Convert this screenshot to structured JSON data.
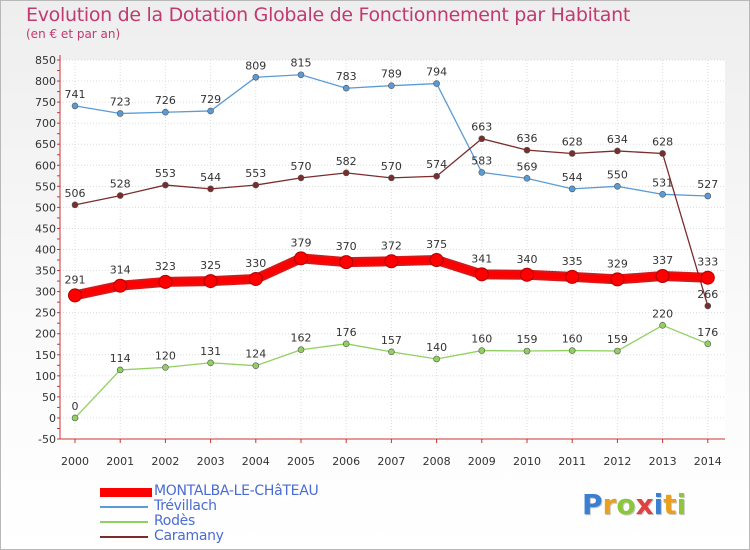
{
  "title": "Evolution de la Dotation Globale de Fonctionnement par Habitant",
  "subtitle": "(en € et par an)",
  "brand": {
    "letters": [
      "P",
      "r",
      "o",
      "x",
      "i",
      "t",
      "i"
    ],
    "colors": [
      "#3a7fd0",
      "#e8a020",
      "#8cc63e",
      "#e04040",
      "#3a7fd0",
      "#e8a020",
      "#8cc63e"
    ]
  },
  "chart_data": {
    "type": "line",
    "title": "Evolution de la Dotation Globale de Fonctionnement par Habitant",
    "ylabel": "(en € et par an)",
    "xlabel": "",
    "x": [
      "2000",
      "2001",
      "2002",
      "2003",
      "2004",
      "2005",
      "2006",
      "2007",
      "2008",
      "2009",
      "2010",
      "2011",
      "2012",
      "2013",
      "2014"
    ],
    "ylim": [
      -50,
      850
    ],
    "yticks": [
      "-50",
      "0",
      "50",
      "100",
      "150",
      "200",
      "250",
      "300",
      "350",
      "400",
      "450",
      "500",
      "550",
      "600",
      "650",
      "700",
      "750",
      "800",
      "850"
    ],
    "grid": true,
    "series": [
      {
        "name": "MONTALBA-LE-CHâTEAU",
        "color": "#ff0000",
        "emphasis": true,
        "values": [
          291,
          314,
          323,
          325,
          330,
          379,
          370,
          372,
          375,
          341,
          340,
          335,
          329,
          337,
          333
        ]
      },
      {
        "name": "Trévillach",
        "color": "#5b9bd5",
        "values": [
          741,
          723,
          726,
          729,
          809,
          815,
          783,
          789,
          794,
          583,
          569,
          544,
          550,
          531,
          527
        ]
      },
      {
        "name": "Rodès",
        "color": "#90d060",
        "values": [
          0,
          114,
          120,
          131,
          124,
          162,
          176,
          157,
          140,
          160,
          159,
          160,
          159,
          220,
          176
        ]
      },
      {
        "name": "Caramany",
        "color": "#7b2c2c",
        "values": [
          506,
          528,
          553,
          544,
          553,
          570,
          582,
          570,
          574,
          663,
          636,
          628,
          634,
          628,
          266
        ]
      }
    ]
  }
}
